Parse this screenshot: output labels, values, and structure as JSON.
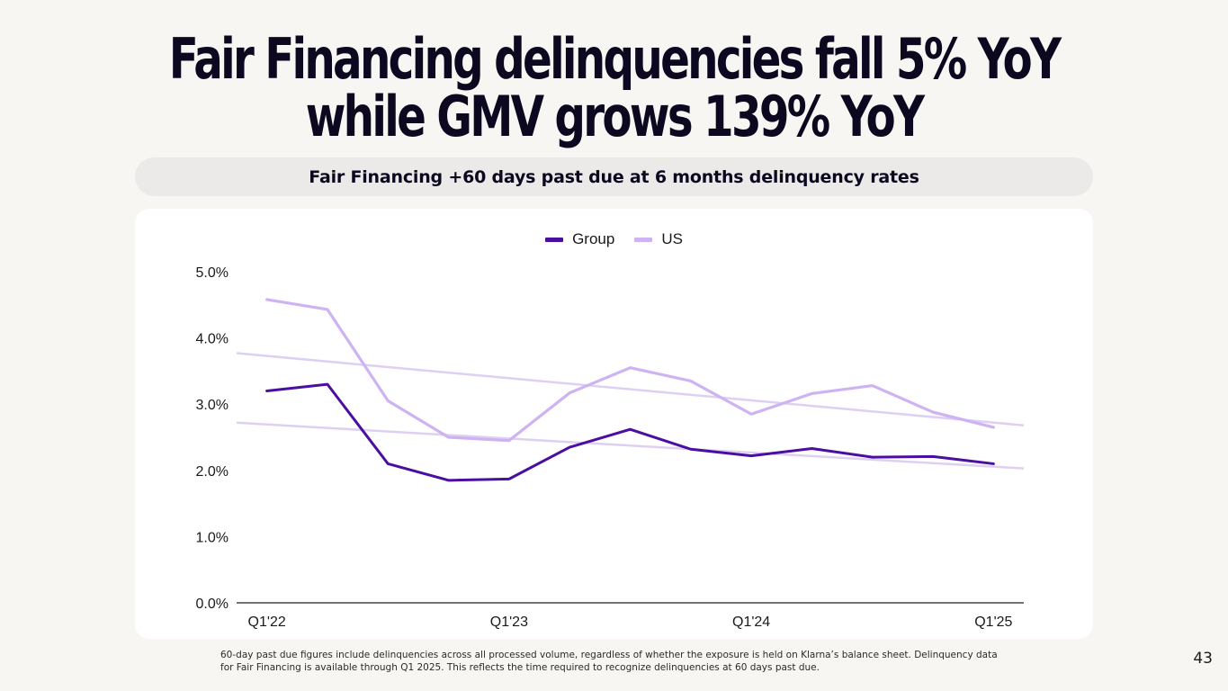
{
  "headline": {
    "line1": "Fair Financing delinquencies fall 5% YoY",
    "line2": "while GMV grows 139% YoY"
  },
  "subtitle": "Fair Financing +60 days past due at 6 months delinquency rates",
  "footnote": {
    "line1": "60-day past due figures include delinquencies across all processed volume, regardless of whether the exposure is held on Klarna’s balance sheet. Delinquency data",
    "line2": "for Fair Financing is available through Q1 2025. This reflects the time required to recognize delinquencies at 60 days past due."
  },
  "page_number": "43",
  "colors": {
    "group": "#4a0fa0",
    "us": "#cdb3f2",
    "trend": "#ddd0f3",
    "axis": "#222222"
  },
  "chart_data": {
    "type": "line",
    "title": "Fair Financing +60 days past due at 6 months delinquency rates",
    "x_index": [
      0,
      1,
      2,
      3,
      4,
      5,
      6,
      7,
      8,
      9,
      10,
      11,
      12
    ],
    "x_ticks": [
      {
        "index": 0,
        "label": "Q1'22"
      },
      {
        "index": 4,
        "label": "Q1'23"
      },
      {
        "index": 8,
        "label": "Q1'24"
      },
      {
        "index": 12,
        "label": "Q1'25"
      }
    ],
    "y_ticks": [
      {
        "value": 0.0,
        "label": "0.0%"
      },
      {
        "value": 1.0,
        "label": "1.0%"
      },
      {
        "value": 2.0,
        "label": "2.0%"
      },
      {
        "value": 3.0,
        "label": "3.0%"
      },
      {
        "value": 4.0,
        "label": "4.0%"
      },
      {
        "value": 5.0,
        "label": "5.0%"
      }
    ],
    "ylim": [
      0,
      5
    ],
    "xlim": [
      -0.5,
      12.5
    ],
    "series": [
      {
        "name": "Group",
        "color_key": "group",
        "values": [
          3.2,
          3.3,
          2.1,
          1.85,
          1.87,
          2.35,
          2.62,
          2.32,
          2.22,
          2.33,
          2.2,
          2.21,
          2.1
        ]
      },
      {
        "name": "US",
        "color_key": "us",
        "values": [
          4.58,
          4.43,
          3.05,
          2.5,
          2.45,
          3.17,
          3.55,
          3.35,
          2.85,
          3.16,
          3.28,
          2.88,
          2.65
        ]
      }
    ],
    "trendlines": [
      {
        "name": "US trend",
        "from": [
          -0.5,
          3.77
        ],
        "to": [
          12.5,
          2.68
        ]
      },
      {
        "name": "Group trend",
        "from": [
          -0.5,
          2.72
        ],
        "to": [
          12.5,
          2.03
        ]
      }
    ],
    "legend": [
      {
        "label": "Group",
        "color_key": "group"
      },
      {
        "label": "US",
        "color_key": "us"
      }
    ],
    "legend_position": "top-center",
    "grid": false
  }
}
